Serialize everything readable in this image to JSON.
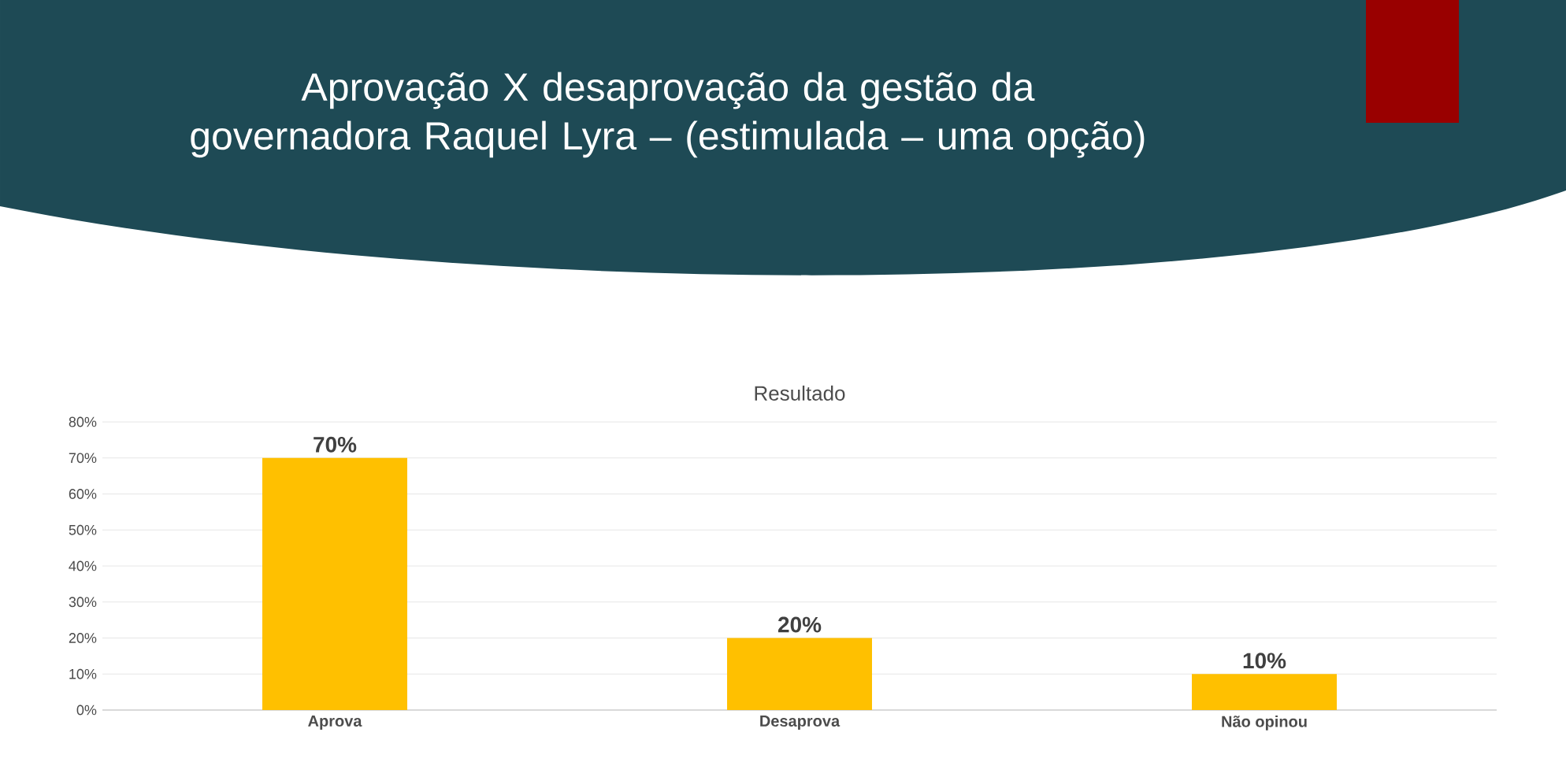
{
  "chart_data": {
    "type": "bar",
    "title": "Aprovação X desaprovação da gestão da governadora Raquel Lyra – (estimulada – uma opção)",
    "subtitle": "Resultado",
    "categories": [
      "Aprova",
      "Desaprova",
      "Não opinou"
    ],
    "values": [
      70,
      20,
      10
    ],
    "color": "#ffc000",
    "value_labels": [
      "70%",
      "20%",
      "10%"
    ],
    "ylim": [
      0,
      80
    ],
    "yticks": [
      {
        "value": 0,
        "label": "0%"
      },
      {
        "value": 10,
        "label": "10%"
      },
      {
        "value": 20,
        "label": "20%"
      },
      {
        "value": 30,
        "label": "30%"
      },
      {
        "value": 40,
        "label": "40%"
      },
      {
        "value": 50,
        "label": "50%"
      },
      {
        "value": 60,
        "label": "60%"
      },
      {
        "value": 70,
        "label": "70%"
      },
      {
        "value": 80,
        "label": "80%"
      }
    ],
    "grid": "y"
  }
}
